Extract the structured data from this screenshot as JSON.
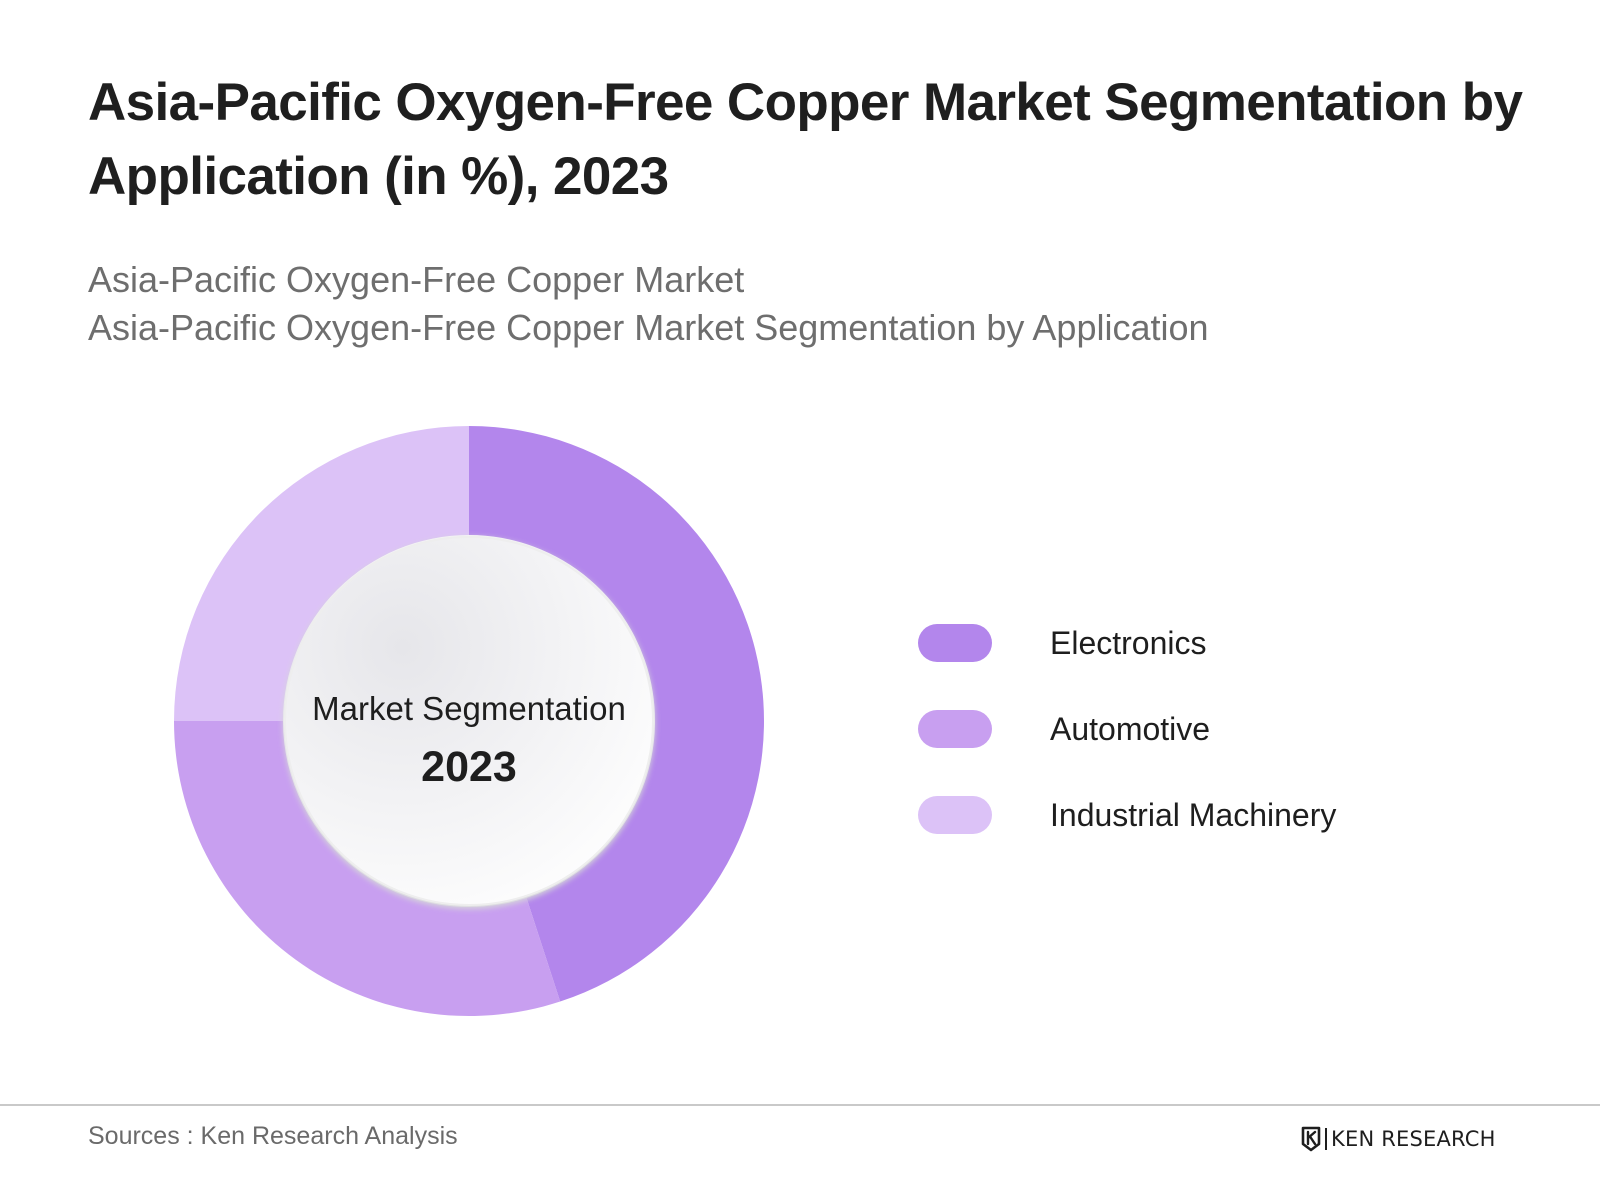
{
  "title": "Asia-Pacific Oxygen-Free Copper Market Segmentation by Application (in %), 2023",
  "subtitle_line1": "Asia-Pacific Oxygen-Free Copper Market",
  "subtitle_line2": "Asia-Pacific Oxygen-Free Copper Market Segmentation by Application",
  "center_label": "Market Segmentation",
  "center_year": "2023",
  "source": "Sources : Ken Research Analysis",
  "brand": "KEN RESEARCH",
  "chart_data": {
    "type": "pie",
    "categories": [
      "Electronics",
      "Automotive",
      "Industrial Machinery"
    ],
    "values": [
      45,
      30,
      25
    ],
    "colors": [
      "#b386ec",
      "#c89ff0",
      "#dcc2f7"
    ],
    "legend_position": "right"
  }
}
